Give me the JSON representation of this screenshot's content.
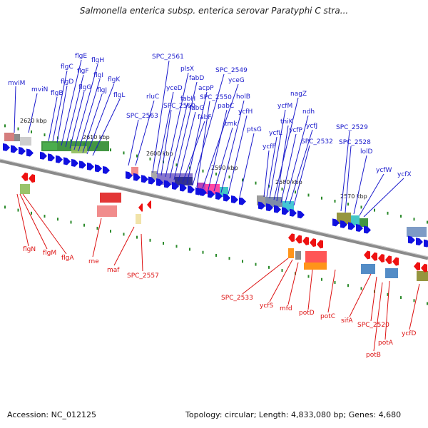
{
  "header": {
    "title": "Salmonella enterica subsp. enterica serovar Paratyphi C stra..."
  },
  "footer": {
    "accession": "Accession: NC_012125",
    "topology": "Topology: circular; Length: 4,833,080 bp; Genes: 4,680"
  },
  "colors": {
    "forward_label": "#1a1acc",
    "reverse_label": "#dd1111",
    "backbone": "#8a8a8a",
    "tick": "#2a8a2a"
  },
  "scale_labels": [
    "2620 kbp",
    "2610 kbp",
    "2600 kbp",
    "2590 kbp",
    "2580 kbp",
    "2570 kbp"
  ],
  "forward_genes": [
    "mviM",
    "mviN",
    "flgB",
    "flgC",
    "flgD",
    "flgE",
    "flgF",
    "flgG",
    "flgH",
    "flgI",
    "flgJ",
    "flgK",
    "flgL",
    "rluC",
    "SPC_2563",
    "SPC_2561",
    "yceD",
    "SPC_2560",
    "plsX",
    "fabH",
    "fabD",
    "fabG",
    "fabF",
    "acpP",
    "SPC_2549",
    "SPC_2550",
    "yceG",
    "pabC",
    "tmk",
    "holB",
    "ycfH",
    "ptsG",
    "nagZ",
    "ycfM",
    "thiK",
    "ycfL",
    "ycfF",
    "ndh",
    "ycfP",
    "ycfJ",
    "SPC_2532",
    "SPC_2529",
    "SPC_2528",
    "lolD",
    "ycfW",
    "ycfX"
  ],
  "reverse_genes": [
    "flgN",
    "flgM",
    "flgA",
    "rne",
    "maf",
    "SPC_2557",
    "SPC_2533",
    "ycfS",
    "mfd",
    "potD",
    "potC",
    "sifA",
    "SPC_2520",
    "potB",
    "potA",
    "ycfD"
  ]
}
